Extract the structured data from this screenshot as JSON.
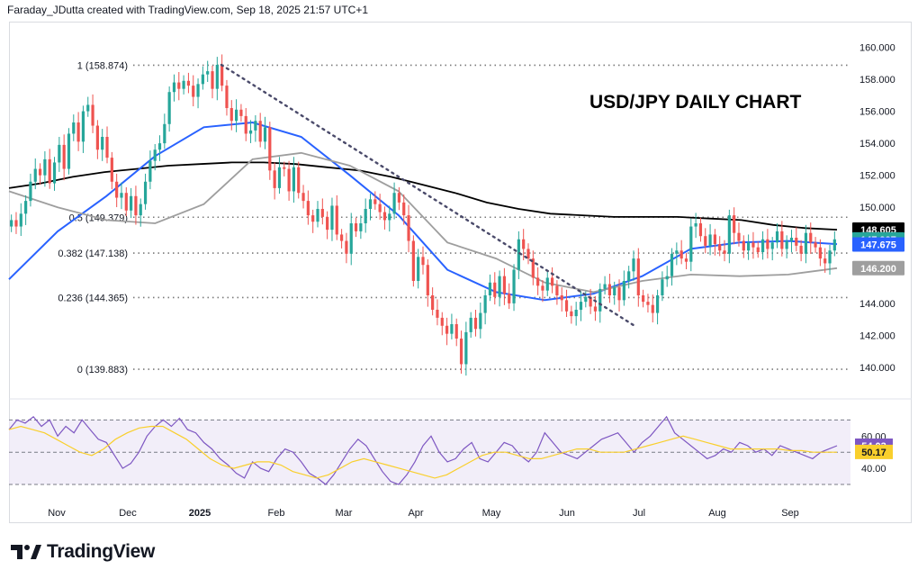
{
  "header": {
    "text": "Faraday_JDutta created with TradingView.com, Sep 18, 2025 21:57 UTC+1"
  },
  "brand": {
    "logo_text": "TradingView"
  },
  "chart_data": [
    {
      "type": "line",
      "title": "USD/JPY DAILY CHART",
      "y_ticks": [
        "160.000",
        "158.000",
        "156.000",
        "154.000",
        "152.000",
        "150.000",
        "148.000",
        "146.000",
        "144.000",
        "142.000",
        "140.000"
      ],
      "ylim": [
        138.2,
        160.7
      ],
      "x_ticks": [
        "Nov",
        "Dec",
        "2025",
        "Feb",
        "Mar",
        "Apr",
        "May",
        "Jun",
        "Jul",
        "Aug",
        "Sep"
      ],
      "fib_levels": [
        {
          "label": "1 (158.874)",
          "value": 158.874
        },
        {
          "label": "0.5 (149.379)",
          "value": 149.379
        },
        {
          "label": "0.382 (147.138)",
          "value": 147.138
        },
        {
          "label": "0.236 (144.365)",
          "value": 144.365
        },
        {
          "label": "0 (139.883)",
          "value": 139.883
        }
      ],
      "price_badges": [
        {
          "text": "148.605",
          "value": 148.605,
          "color": "#000000"
        },
        {
          "text": "147.997",
          "value": 147.997,
          "color": "#26a69a"
        },
        {
          "text": "147.675",
          "value": 147.675,
          "color": "#2962ff"
        },
        {
          "text": "146.200",
          "value": 146.2,
          "color": "#9e9e9e"
        }
      ],
      "candles_close": [
        149.2,
        148.8,
        149.6,
        150.4,
        151.6,
        152.4,
        152.0,
        153.0,
        151.5,
        152.8,
        153.9,
        152.4,
        154.6,
        155.3,
        154.1,
        156.0,
        156.4,
        155.1,
        153.6,
        154.4,
        153.1,
        151.6,
        150.6,
        150.9,
        149.8,
        150.7,
        149.5,
        150.2,
        151.6,
        152.9,
        153.6,
        154.0,
        155.2,
        157.2,
        157.8,
        157.4,
        157.9,
        157.6,
        156.9,
        157.7,
        158.3,
        158.5,
        157.4,
        158.9,
        157.6,
        156.2,
        155.4,
        156.1,
        155.7,
        154.6,
        154.8,
        155.4,
        154.1,
        155.0,
        152.3,
        151.2,
        152.5,
        152.4,
        151.0,
        152.5,
        150.9,
        150.4,
        149.5,
        149.1,
        149.9,
        149.4,
        148.6,
        150.1,
        148.3,
        147.9,
        147.1,
        149.0,
        148.5,
        149.0,
        149.9,
        150.5,
        150.2,
        149.7,
        149.2,
        149.6,
        150.9,
        150.3,
        149.5,
        147.9,
        145.4,
        146.9,
        146.4,
        144.5,
        143.6,
        143.1,
        142.6,
        142.1,
        142.7,
        141.8,
        140.2,
        142.2,
        143.1,
        142.4,
        143.4,
        144.5,
        145.3,
        144.4,
        145.7,
        144.6,
        144.0,
        146.1,
        148.0,
        147.4,
        146.8,
        145.6,
        145.1,
        144.8,
        145.6,
        145.1,
        144.5,
        144.2,
        143.5,
        143.2,
        143.6,
        144.1,
        144.4,
        143.8,
        143.5,
        144.9,
        145.2,
        144.5,
        145.0,
        144.2,
        145.4,
        146.0,
        146.8,
        144.5,
        144.1,
        143.9,
        143.4,
        144.5,
        145.5,
        145.7,
        147.1,
        147.3,
        146.8,
        146.6,
        148.8,
        149.0,
        148.2,
        147.6,
        148.3,
        147.7,
        147.3,
        147.1,
        149.5,
        148.4,
        147.9,
        147.3,
        147.8,
        147.5,
        147.2,
        148.0,
        147.4,
        147.8,
        148.5,
        147.4,
        147.9,
        148.1,
        147.6,
        147.1,
        148.4,
        147.8,
        147.5,
        146.8,
        146.5,
        147.3,
        148.0
      ],
      "series": [
        {
          "name": "",
          "color": "#000000",
          "values": [
            151.2,
            151.5,
            151.9,
            152.2,
            152.4,
            152.6,
            152.7,
            152.8,
            152.8,
            152.7,
            152.5,
            152.3,
            151.9,
            151.4,
            150.9,
            150.3,
            149.9,
            149.6,
            149.5,
            149.4,
            149.4,
            149.4,
            149.3,
            149.2,
            148.9,
            148.7,
            148.6
          ]
        },
        {
          "name": "",
          "color": "#2962ff",
          "values": [
            145.5,
            148.5,
            150.7,
            153.2,
            155.0,
            155.3,
            154.4,
            152.0,
            149.5,
            146.1,
            144.7,
            144.2,
            144.6,
            145.7,
            147.4,
            147.8,
            147.9,
            147.7
          ]
        },
        {
          "name": "",
          "color": "#9e9e9e",
          "values": [
            151.0,
            150.0,
            149.2,
            149.0,
            150.2,
            153.0,
            153.4,
            152.6,
            151.0,
            147.8,
            146.8,
            145.3,
            144.7,
            145.4,
            145.8,
            145.7,
            145.8,
            146.2
          ]
        }
      ],
      "trendline": {
        "from": [
          158.9
        ],
        "to": [
          142.6
        ]
      },
      "rsi": {
        "labels": [
          "60.00",
          "40.00"
        ],
        "ylim": [
          25,
          78
        ],
        "badges": [
          {
            "text": "54.03",
            "value": 54.03,
            "color": "#7e57c2"
          },
          {
            "text": "50.17",
            "value": 50.17,
            "color": "#f9cf2c"
          }
        ],
        "rsi_values": [
          64,
          70,
          68,
          72,
          66,
          70,
          60,
          66,
          62,
          70,
          64,
          58,
          56,
          48,
          40,
          43,
          50,
          60,
          66,
          70,
          66,
          71,
          64,
          62,
          56,
          52,
          46,
          42,
          37,
          34,
          44,
          40,
          38,
          46,
          52,
          50,
          44,
          37,
          34,
          30,
          36,
          44,
          52,
          58,
          54,
          46,
          38,
          32,
          30,
          36,
          44,
          54,
          60,
          50,
          44,
          46,
          52,
          56,
          46,
          44,
          50,
          56,
          54,
          48,
          44,
          50,
          62,
          56,
          50,
          48,
          46,
          50,
          54,
          58,
          60,
          62,
          56,
          50,
          56,
          60,
          66,
          72,
          62,
          58,
          54,
          50,
          46,
          48,
          52,
          50,
          56,
          54,
          50,
          52,
          48,
          54,
          52,
          50,
          48,
          46,
          50,
          52,
          54
        ],
        "ma_values": [
          64,
          66,
          64,
          62,
          58,
          54,
          50,
          48,
          52,
          58,
          62,
          65,
          66,
          66,
          62,
          58,
          52,
          46,
          42,
          40,
          42,
          44,
          44,
          42,
          38,
          36,
          34,
          36,
          40,
          44,
          46,
          44,
          42,
          40,
          38,
          36,
          34,
          36,
          40,
          44,
          48,
          50,
          50,
          48,
          46,
          46,
          48,
          50,
          52,
          52,
          50,
          50,
          50,
          52,
          54,
          56,
          58,
          60,
          58,
          56,
          54,
          52,
          52,
          52,
          52,
          52,
          51,
          51,
          50,
          50,
          50
        ]
      }
    }
  ]
}
